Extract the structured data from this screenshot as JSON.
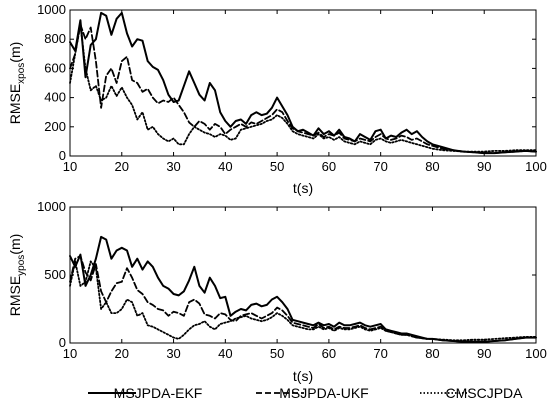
{
  "chart_data": [
    {
      "type": "line",
      "xlabel": "t(s)",
      "ylabel": {
        "main": "RMSE",
        "sub": "xpos",
        "unit": "(m)"
      },
      "xlim": [
        10,
        100
      ],
      "ylim": [
        0,
        1000
      ],
      "xticks": [
        10,
        20,
        30,
        40,
        50,
        60,
        70,
        80,
        90,
        100
      ],
      "yticks": [
        0,
        200,
        400,
        600,
        800,
        1000
      ],
      "grid": false,
      "series": [
        {
          "name": "MSJPDA-EKF",
          "style": "solid",
          "x": [
            10,
            11,
            12,
            13,
            14,
            15,
            16,
            17,
            18,
            19,
            20,
            21,
            22,
            23,
            24,
            25,
            26,
            27,
            28,
            29,
            30,
            31,
            32,
            33,
            34,
            35,
            36,
            37,
            38,
            39,
            40,
            41,
            42,
            43,
            44,
            45,
            46,
            47,
            48,
            49,
            50,
            51,
            52,
            53,
            54,
            55,
            56,
            57,
            58,
            59,
            60,
            61,
            62,
            63,
            64,
            65,
            66,
            67,
            68,
            69,
            70,
            71,
            72,
            73,
            74,
            75,
            76,
            77,
            78,
            79,
            80,
            82,
            84,
            86,
            88,
            90,
            92,
            94,
            96,
            98,
            100
          ],
          "y": [
            780,
            720,
            930,
            540,
            760,
            800,
            980,
            960,
            830,
            940,
            980,
            840,
            750,
            800,
            790,
            650,
            610,
            590,
            520,
            420,
            370,
            380,
            480,
            580,
            500,
            420,
            380,
            500,
            450,
            300,
            240,
            200,
            240,
            250,
            220,
            280,
            300,
            280,
            290,
            330,
            400,
            340,
            280,
            200,
            170,
            180,
            160,
            140,
            190,
            150,
            170,
            140,
            180,
            130,
            120,
            100,
            150,
            130,
            110,
            170,
            180,
            120,
            140,
            130,
            160,
            180,
            150,
            170,
            130,
            100,
            80,
            60,
            40,
            30,
            25,
            20,
            20,
            25,
            30,
            35,
            30
          ]
        },
        {
          "name": "MSJPDA-UKF",
          "style": "dashed",
          "x": [
            10,
            11,
            12,
            13,
            14,
            15,
            16,
            17,
            18,
            19,
            20,
            21,
            22,
            23,
            24,
            25,
            26,
            27,
            28,
            29,
            30,
            31,
            32,
            33,
            34,
            35,
            36,
            37,
            38,
            39,
            40,
            41,
            42,
            43,
            44,
            45,
            46,
            47,
            48,
            49,
            50,
            51,
            52,
            53,
            54,
            55,
            56,
            57,
            58,
            59,
            60,
            61,
            62,
            63,
            64,
            65,
            66,
            67,
            68,
            69,
            70,
            71,
            72,
            73,
            74,
            75,
            76,
            77,
            78,
            79,
            80,
            82,
            84,
            86,
            88,
            90,
            92,
            94,
            96,
            98,
            100
          ],
          "y": [
            600,
            700,
            900,
            800,
            880,
            650,
            330,
            550,
            600,
            500,
            650,
            680,
            520,
            500,
            440,
            460,
            400,
            360,
            380,
            370,
            400,
            350,
            300,
            230,
            200,
            240,
            220,
            180,
            220,
            200,
            150,
            180,
            200,
            220,
            200,
            230,
            220,
            240,
            260,
            280,
            320,
            300,
            240,
            190,
            170,
            160,
            150,
            140,
            160,
            130,
            150,
            140,
            160,
            120,
            110,
            100,
            120,
            110,
            100,
            130,
            150,
            120,
            110,
            120,
            140,
            130,
            110,
            120,
            100,
            80,
            70,
            50,
            40,
            30,
            25,
            20,
            20,
            25,
            30,
            35,
            30
          ]
        },
        {
          "name": "CMSCJPDA",
          "style": "dotted",
          "x": [
            10,
            11,
            12,
            13,
            14,
            15,
            16,
            17,
            18,
            19,
            20,
            21,
            22,
            23,
            24,
            25,
            26,
            27,
            28,
            29,
            30,
            31,
            32,
            33,
            34,
            35,
            36,
            37,
            38,
            39,
            40,
            41,
            42,
            43,
            44,
            45,
            46,
            47,
            48,
            49,
            50,
            51,
            52,
            53,
            54,
            55,
            56,
            57,
            58,
            59,
            60,
            61,
            62,
            63,
            64,
            65,
            66,
            67,
            68,
            69,
            70,
            71,
            72,
            73,
            74,
            75,
            76,
            77,
            78,
            79,
            80,
            82,
            84,
            86,
            88,
            90,
            92,
            94,
            96,
            98,
            100
          ],
          "y": [
            500,
            700,
            900,
            600,
            450,
            480,
            380,
            400,
            480,
            410,
            470,
            400,
            350,
            250,
            300,
            180,
            200,
            150,
            120,
            100,
            120,
            80,
            80,
            150,
            200,
            180,
            160,
            150,
            130,
            150,
            140,
            110,
            120,
            180,
            190,
            200,
            210,
            220,
            240,
            250,
            280,
            260,
            220,
            170,
            150,
            140,
            130,
            120,
            150,
            120,
            130,
            110,
            130,
            100,
            90,
            80,
            100,
            90,
            80,
            110,
            120,
            100,
            90,
            100,
            110,
            100,
            90,
            80,
            70,
            60,
            50,
            40,
            35,
            30,
            30,
            30,
            35,
            35,
            40,
            40,
            40
          ]
        }
      ]
    },
    {
      "type": "line",
      "xlabel": "t(s)",
      "ylabel": {
        "main": "RMSE",
        "sub": "ypos",
        "unit": "(m)"
      },
      "xlim": [
        10,
        100
      ],
      "ylim": [
        0,
        1000
      ],
      "xticks": [
        10,
        20,
        30,
        40,
        50,
        60,
        70,
        80,
        90,
        100
      ],
      "yticks": [
        0,
        500,
        1000
      ],
      "grid": false,
      "series": [
        {
          "name": "MSJPDA-EKF",
          "style": "solid",
          "x": [
            10,
            11,
            12,
            13,
            14,
            15,
            16,
            17,
            18,
            19,
            20,
            21,
            22,
            23,
            24,
            25,
            26,
            27,
            28,
            29,
            30,
            31,
            32,
            33,
            34,
            35,
            36,
            37,
            38,
            39,
            40,
            41,
            42,
            43,
            44,
            45,
            46,
            47,
            48,
            49,
            50,
            51,
            52,
            53,
            54,
            55,
            56,
            57,
            58,
            59,
            60,
            61,
            62,
            63,
            64,
            65,
            66,
            67,
            68,
            69,
            70,
            71,
            72,
            73,
            74,
            75,
            76,
            77,
            78,
            79,
            80,
            82,
            84,
            86,
            88,
            90,
            92,
            94,
            96,
            98,
            100
          ],
          "y": [
            640,
            560,
            650,
            420,
            500,
            620,
            780,
            760,
            620,
            680,
            700,
            680,
            560,
            620,
            540,
            600,
            560,
            480,
            420,
            400,
            360,
            350,
            380,
            460,
            560,
            420,
            370,
            480,
            420,
            330,
            340,
            200,
            230,
            250,
            240,
            280,
            290,
            270,
            280,
            320,
            340,
            300,
            250,
            170,
            160,
            150,
            140,
            130,
            150,
            130,
            140,
            120,
            150,
            130,
            130,
            140,
            150,
            130,
            120,
            130,
            140,
            100,
            90,
            80,
            70,
            70,
            60,
            50,
            40,
            30,
            30,
            20,
            15,
            10,
            10,
            10,
            15,
            20,
            30,
            40,
            40
          ]
        },
        {
          "name": "MSJPDA-UKF",
          "style": "dashed",
          "x": [
            10,
            11,
            12,
            13,
            14,
            15,
            16,
            17,
            18,
            19,
            20,
            21,
            22,
            23,
            24,
            25,
            26,
            27,
            28,
            29,
            30,
            31,
            32,
            33,
            34,
            35,
            36,
            37,
            38,
            39,
            40,
            41,
            42,
            43,
            44,
            45,
            46,
            47,
            48,
            49,
            50,
            51,
            52,
            53,
            54,
            55,
            56,
            57,
            58,
            59,
            60,
            61,
            62,
            63,
            64,
            65,
            66,
            67,
            68,
            69,
            70,
            71,
            72,
            73,
            74,
            75,
            76,
            77,
            78,
            79,
            80,
            82,
            84,
            86,
            88,
            90,
            92,
            94,
            96,
            98,
            100
          ],
          "y": [
            450,
            620,
            640,
            520,
            460,
            580,
            380,
            300,
            380,
            440,
            450,
            550,
            480,
            390,
            360,
            300,
            280,
            250,
            240,
            200,
            230,
            220,
            200,
            300,
            320,
            290,
            210,
            200,
            180,
            220,
            210,
            170,
            160,
            200,
            210,
            220,
            200,
            180,
            200,
            220,
            260,
            240,
            200,
            150,
            140,
            130,
            120,
            110,
            140,
            110,
            120,
            100,
            120,
            110,
            110,
            120,
            130,
            110,
            100,
            110,
            120,
            90,
            80,
            70,
            60,
            60,
            50,
            40,
            35,
            30,
            30,
            20,
            15,
            10,
            10,
            10,
            15,
            20,
            30,
            40,
            40
          ]
        },
        {
          "name": "CMSCJPDA",
          "style": "dotted",
          "x": [
            10,
            11,
            12,
            13,
            14,
            15,
            16,
            17,
            18,
            19,
            20,
            21,
            22,
            23,
            24,
            25,
            26,
            27,
            28,
            29,
            30,
            31,
            32,
            33,
            34,
            35,
            36,
            37,
            38,
            39,
            40,
            41,
            42,
            43,
            44,
            45,
            46,
            47,
            48,
            49,
            50,
            51,
            52,
            53,
            54,
            55,
            56,
            57,
            58,
            59,
            60,
            61,
            62,
            63,
            64,
            65,
            66,
            67,
            68,
            69,
            70,
            71,
            72,
            73,
            74,
            75,
            76,
            77,
            78,
            79,
            80,
            82,
            84,
            86,
            88,
            90,
            92,
            94,
            96,
            98,
            100
          ],
          "y": [
            420,
            600,
            420,
            450,
            600,
            550,
            250,
            300,
            220,
            220,
            250,
            320,
            300,
            200,
            220,
            130,
            120,
            100,
            80,
            60,
            40,
            30,
            60,
            100,
            130,
            140,
            160,
            120,
            100,
            140,
            150,
            160,
            180,
            190,
            200,
            180,
            170,
            160,
            170,
            190,
            220,
            200,
            170,
            130,
            120,
            110,
            100,
            100,
            120,
            100,
            110,
            90,
            110,
            100,
            100,
            110,
            120,
            100,
            90,
            100,
            110,
            90,
            80,
            70,
            60,
            60,
            50,
            40,
            35,
            30,
            30,
            25,
            20,
            20,
            25,
            25,
            30,
            35,
            40,
            45,
            45
          ]
        }
      ]
    }
  ]
}
